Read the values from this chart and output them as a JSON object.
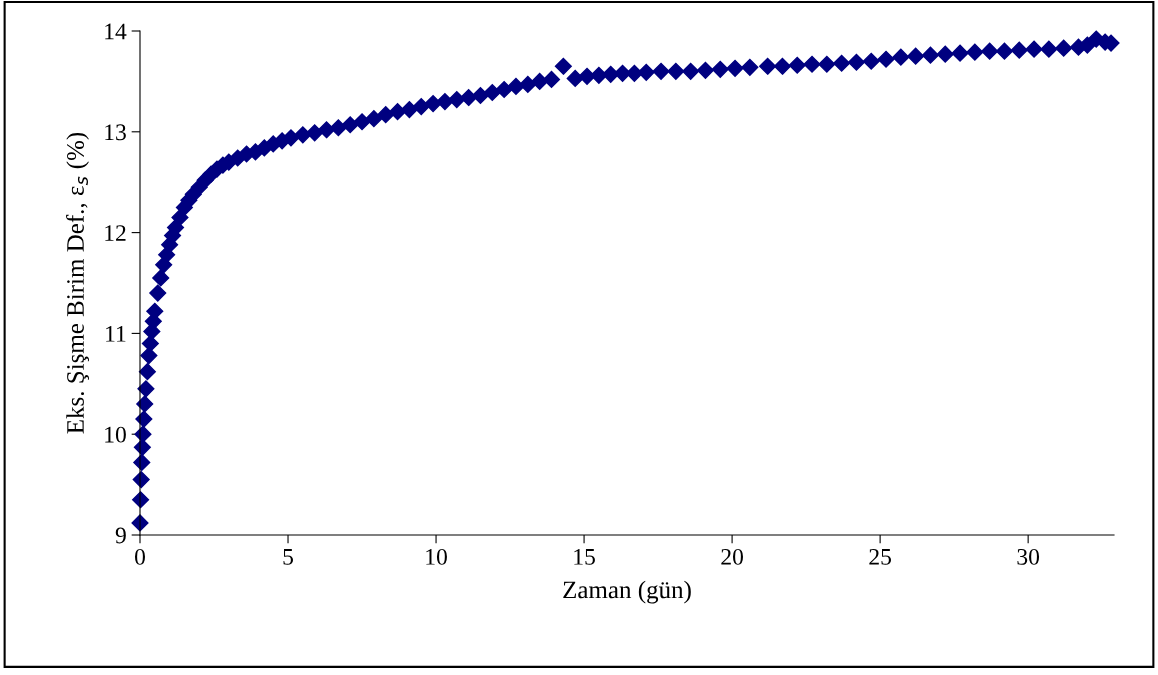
{
  "chart_data": {
    "type": "scatter",
    "xlabel": "Zaman (gün)",
    "ylabel": "Eks. Şişme Birim Def., ε$_{s}$ (%)",
    "xlim": [
      0,
      32.9
    ],
    "xticks": [
      0,
      5,
      10,
      15,
      20,
      25,
      30
    ],
    "ylim": [
      9,
      14
    ],
    "yticks": [
      9,
      10,
      11,
      12,
      13,
      14
    ],
    "marker": "diamond",
    "grid": false,
    "legend": false,
    "series": [
      {
        "color": "#000080",
        "x": [
          0,
          0.02,
          0.04,
          0.06,
          0.08,
          0.1,
          0.13,
          0.16,
          0.2,
          0.25,
          0.3,
          0.35,
          0.4,
          0.45,
          0.5,
          0.6,
          0.7,
          0.8,
          0.9,
          1.0,
          1.1,
          1.2,
          1.35,
          1.5,
          1.65,
          1.8,
          2.0,
          2.2,
          2.4,
          2.6,
          2.8,
          3.0,
          3.3,
          3.6,
          3.9,
          4.2,
          4.5,
          4.8,
          5.1,
          5.5,
          5.9,
          6.3,
          6.7,
          7.1,
          7.5,
          7.9,
          8.3,
          8.7,
          9.1,
          9.5,
          9.9,
          10.3,
          10.7,
          11.1,
          11.5,
          11.9,
          12.3,
          12.7,
          13.1,
          13.5,
          13.9,
          14.3,
          14.7,
          15.1,
          15.5,
          15.9,
          16.3,
          16.7,
          17.1,
          17.6,
          18.1,
          18.6,
          19.1,
          19.6,
          20.1,
          20.6,
          21.2,
          21.7,
          22.2,
          22.7,
          23.2,
          23.7,
          24.2,
          24.7,
          25.2,
          25.7,
          26.2,
          26.7,
          27.2,
          27.7,
          28.2,
          28.7,
          29.2,
          29.7,
          30.2,
          30.7,
          31.2,
          31.7,
          32.0,
          32.3,
          32.6,
          32.8
        ],
        "values": [
          9.12,
          9.35,
          9.55,
          9.72,
          9.87,
          10.0,
          10.15,
          10.3,
          10.45,
          10.62,
          10.78,
          10.9,
          11.02,
          11.12,
          11.22,
          11.4,
          11.55,
          11.68,
          11.78,
          11.88,
          11.97,
          12.05,
          12.15,
          12.25,
          12.32,
          12.38,
          12.45,
          12.52,
          12.58,
          12.63,
          12.67,
          12.7,
          12.74,
          12.78,
          12.8,
          12.84,
          12.88,
          12.91,
          12.94,
          12.97,
          12.99,
          13.02,
          13.04,
          13.07,
          13.1,
          13.13,
          13.17,
          13.2,
          13.22,
          13.25,
          13.28,
          13.3,
          13.32,
          13.34,
          13.36,
          13.39,
          13.42,
          13.45,
          13.47,
          13.5,
          13.52,
          13.65,
          13.53,
          13.55,
          13.56,
          13.57,
          13.58,
          13.58,
          13.59,
          13.6,
          13.6,
          13.6,
          13.61,
          13.62,
          13.63,
          13.64,
          13.65,
          13.65,
          13.66,
          13.67,
          13.67,
          13.68,
          13.69,
          13.7,
          13.72,
          13.74,
          13.75,
          13.76,
          13.77,
          13.78,
          13.79,
          13.8,
          13.8,
          13.81,
          13.82,
          13.82,
          13.83,
          13.84,
          13.86,
          13.92,
          13.89,
          13.88
        ]
      }
    ]
  }
}
